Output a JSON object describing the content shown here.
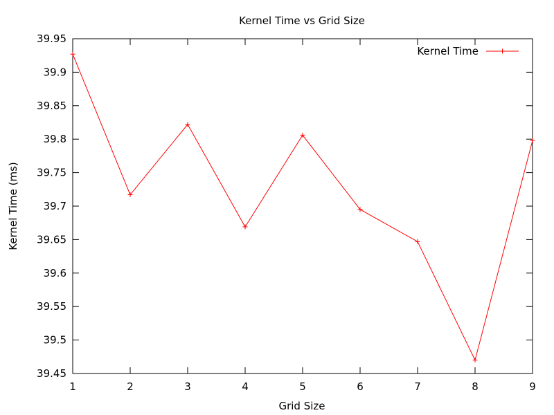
{
  "chart_data": {
    "type": "line",
    "title": "Kernel Time vs Grid Size",
    "xlabel": "Grid Size",
    "ylabel": "Kernel Time (ms)",
    "xlim": [
      1,
      9
    ],
    "ylim": [
      39.45,
      39.95
    ],
    "xticks": [
      "1",
      "2",
      "3",
      "4",
      "5",
      "6",
      "7",
      "8",
      "9"
    ],
    "yticks": [
      "39.45",
      "39.5",
      "39.55",
      "39.6",
      "39.65",
      "39.7",
      "39.75",
      "39.8",
      "39.85",
      "39.9",
      "39.95"
    ],
    "grid": false,
    "legend_position": "top-right",
    "series": [
      {
        "name": "Kernel Time",
        "color": "#ff0000",
        "x": [
          1,
          2,
          3,
          4,
          5,
          6,
          7,
          8,
          9
        ],
        "y": [
          39.927,
          39.717,
          39.822,
          39.669,
          39.806,
          39.695,
          39.647,
          39.47,
          39.798
        ]
      }
    ]
  }
}
